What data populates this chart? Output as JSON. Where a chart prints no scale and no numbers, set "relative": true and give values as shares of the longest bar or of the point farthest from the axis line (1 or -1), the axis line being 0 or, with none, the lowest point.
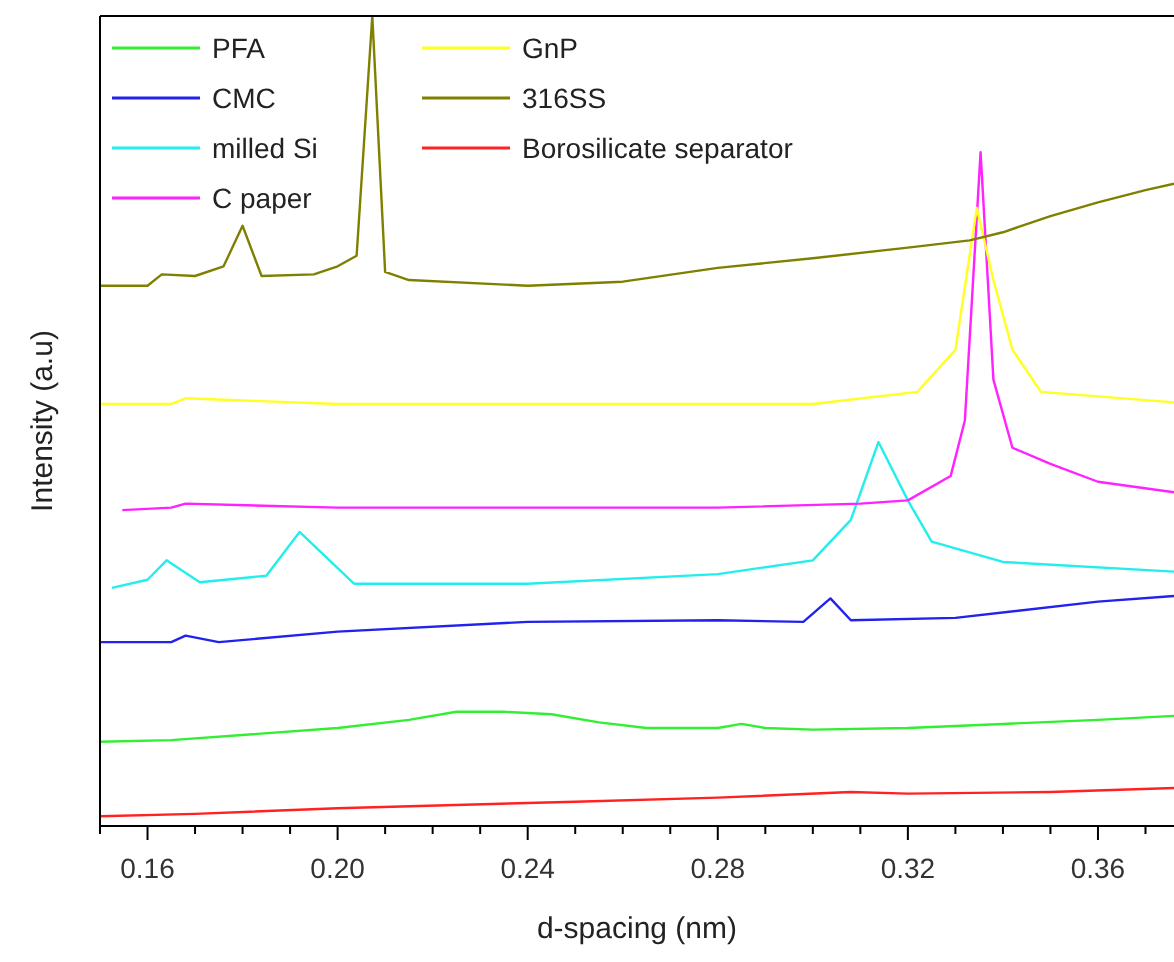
{
  "chart_data": {
    "type": "line",
    "xlabel": "d-spacing (nm)",
    "ylabel": "Intensity (a.u)",
    "relative": true,
    "legend": "top left",
    "grid": false,
    "line_style": "solid",
    "xlim": [
      0.15,
      0.376
    ],
    "xticks": [
      {
        "value": 0.15,
        "label": null
      },
      0.16,
      {
        "value": 0.17,
        "label": null
      },
      {
        "value": 0.18,
        "label": null
      },
      {
        "value": 0.19,
        "label": null
      },
      "0.20",
      {
        "value": 0.21,
        "label": null
      },
      {
        "value": 0.22,
        "label": null
      },
      {
        "value": 0.23,
        "label": null
      },
      0.24,
      {
        "value": 0.25,
        "label": null
      },
      {
        "value": 0.26,
        "label": null
      },
      {
        "value": 0.27,
        "label": null
      },
      0.28,
      {
        "value": 0.29,
        "label": null
      },
      {
        "value": 0.3,
        "label": null
      },
      {
        "value": 0.31,
        "label": null
      },
      0.32,
      {
        "value": 0.33,
        "label": null
      },
      {
        "value": 0.34,
        "label": null
      },
      {
        "value": 0.35,
        "label": null
      },
      0.36,
      {
        "value": 0.37,
        "label": null
      }
    ],
    "series": [
      {
        "name": "PFA",
        "color": "#33ee33",
        "x": [
          0.15,
          0.165,
          0.2,
          0.215,
          0.225,
          0.235,
          0.245,
          0.255,
          0.265,
          0.28,
          0.285,
          0.29,
          0.3,
          0.32,
          0.34,
          0.36,
          0.376
        ],
        "values": [
          0.104,
          0.106,
          0.121,
          0.131,
          0.141,
          0.141,
          0.138,
          0.128,
          0.121,
          0.121,
          0.126,
          0.121,
          0.119,
          0.121,
          0.126,
          0.131,
          0.136
        ]
      },
      {
        "name": "CMC",
        "color": "#2222ee",
        "x": [
          0.15,
          0.165,
          0.168,
          0.175,
          0.2,
          0.24,
          0.28,
          0.298,
          0.3037,
          0.308,
          0.33,
          0.36,
          0.376
        ],
        "values": [
          0.227,
          0.227,
          0.235,
          0.227,
          0.24,
          0.252,
          0.254,
          0.252,
          0.281,
          0.254,
          0.257,
          0.277,
          0.284
        ]
      },
      {
        "name": "milled Si",
        "color": "#22eeee",
        "x": [
          0.1525,
          0.16,
          0.164,
          0.171,
          0.185,
          0.192,
          0.2035,
          0.24,
          0.28,
          0.3,
          0.308,
          0.3138,
          0.32,
          0.325,
          0.34,
          0.376
        ],
        "values": [
          0.294,
          0.304,
          0.328,
          0.301,
          0.309,
          0.363,
          0.299,
          0.299,
          0.311,
          0.328,
          0.378,
          0.474,
          0.402,
          0.351,
          0.326,
          0.314
        ]
      },
      {
        "name": "C paper",
        "color": "#ff22ff",
        "x": [
          0.1547,
          0.165,
          0.168,
          0.2,
          0.28,
          0.31,
          0.32,
          0.329,
          0.332,
          0.3353,
          0.338,
          0.342,
          0.35,
          0.36,
          0.376
        ],
        "values": [
          0.39,
          0.393,
          0.398,
          0.393,
          0.393,
          0.398,
          0.402,
          0.432,
          0.501,
          0.832,
          0.551,
          0.467,
          0.447,
          0.425,
          0.412
        ]
      },
      {
        "name": "GnP",
        "color": "#ffff22",
        "x": [
          0.15,
          0.165,
          0.168,
          0.2,
          0.3,
          0.322,
          0.33,
          0.3345,
          0.338,
          0.342,
          0.348,
          0.376
        ],
        "values": [
          0.521,
          0.521,
          0.528,
          0.521,
          0.521,
          0.536,
          0.588,
          0.763,
          0.674,
          0.588,
          0.536,
          0.523
        ]
      },
      {
        "name": "316SS",
        "color": "#808000",
        "x": [
          0.15,
          0.16,
          0.163,
          0.17,
          0.176,
          0.18,
          0.184,
          0.195,
          0.2,
          0.204,
          0.2073,
          0.21,
          0.215,
          0.24,
          0.26,
          0.28,
          0.3,
          0.32,
          0.333,
          0.34,
          0.35,
          0.36,
          0.37,
          0.376
        ],
        "values": [
          0.667,
          0.667,
          0.681,
          0.679,
          0.691,
          0.741,
          0.679,
          0.681,
          0.691,
          0.704,
          1,
          0.684,
          0.674,
          0.667,
          0.672,
          0.689,
          0.701,
          0.714,
          0.723,
          0.733,
          0.753,
          0.77,
          0.785,
          0.793
        ]
      },
      {
        "name": "Borosilicate separator",
        "color": "#ff2222",
        "x": [
          0.15,
          0.17,
          0.2,
          0.25,
          0.28,
          0.308,
          0.32,
          0.35,
          0.376
        ],
        "values": [
          0.012,
          0.015,
          0.022,
          0.03,
          0.035,
          0.042,
          0.04,
          0.042,
          0.047
        ]
      }
    ]
  }
}
